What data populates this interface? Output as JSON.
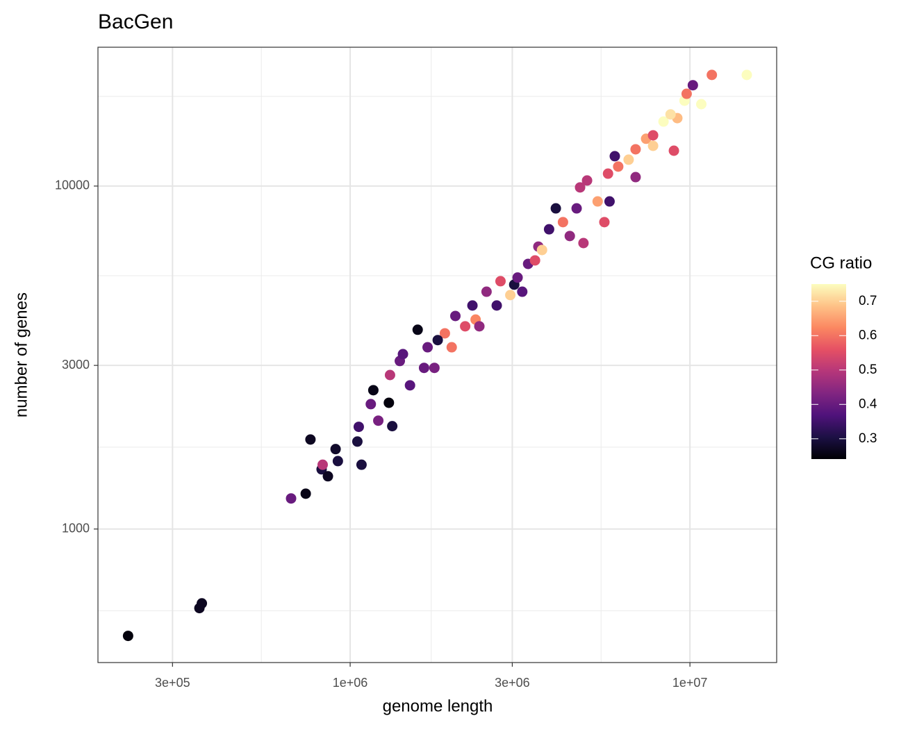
{
  "chart_data": {
    "type": "scatter",
    "title": "BacGen",
    "x_label": "genome length",
    "y_label": "number of genes",
    "x_log": true,
    "y_log": true,
    "grid": true,
    "minor_grid": true,
    "xlim": [
      181000,
      18000000
    ],
    "ylim": [
      408,
      25400
    ],
    "xticks": [
      {
        "value": 300000,
        "label": "3e+05"
      },
      {
        "value": 1000000,
        "label": "1e+06"
      },
      {
        "value": 3000000,
        "label": "3e+06"
      },
      {
        "value": 10000000,
        "label": "1e+07"
      }
    ],
    "yticks": [
      1000,
      3000,
      10000
    ],
    "color_title": "CG ratio",
    "color_lim": [
      0.241,
      0.75
    ],
    "color_ticks": [
      0.3,
      0.4,
      0.5,
      0.6,
      0.7
    ],
    "colormap": [
      "#000004",
      "#1c1044",
      "#4f127b",
      "#812581",
      "#b5367a",
      "#e55064",
      "#fb8761",
      "#fec287",
      "#fcfdbf"
    ],
    "x": [
      222000,
      360000,
      366000,
      670000,
      740000,
      764000,
      824000,
      860000,
      906000,
      920000,
      830000,
      1050000,
      1080000,
      1060000,
      1150000,
      1170000,
      1300000,
      1330000,
      1210000,
      1310000,
      1400000,
      1500000,
      1580000,
      1690000,
      1770000,
      1900000,
      2040000,
      1990000,
      2180000,
      2340000,
      2290000,
      2520000,
      2770000,
      3040000,
      3210000,
      2960000,
      3340000,
      3580000,
      3850000,
      3670000,
      4230000,
      4430000,
      4860000,
      4640000,
      4750000,
      4980000,
      5350000,
      5740000,
      5800000,
      6150000,
      6010000,
      6600000,
      6920000,
      7430000,
      7790000,
      8360000,
      8970000,
      9180000,
      8770000,
      9640000,
      9780000,
      10800000,
      10200000,
      11600000,
      14700000,
      7790000,
      5600000,
      6920000,
      4030000,
      3500000,
      3110000,
      2700000,
      2400000,
      1810000,
      1650000,
      1430000
    ],
    "y": [
      488,
      588,
      607,
      1228,
      1268,
      1824,
      1493,
      1425,
      1710,
      1578,
      1540,
      1799,
      1540,
      1986,
      2313,
      2540,
      2334,
      1995,
      2070,
      2812,
      3090,
      2624,
      3811,
      3388,
      2950,
      3720,
      4180,
      3388,
      3900,
      4080,
      4485,
      4920,
      5280,
      5160,
      4920,
      4810,
      5930,
      6660,
      7480,
      6510,
      7850,
      7150,
      6820,
      8610,
      9910,
      10380,
      9020,
      10870,
      9020,
      11400,
      12220,
      11940,
      12800,
      13740,
      14060,
      15420,
      12680,
      15780,
      16180,
      17740,
      18580,
      17330,
      19680,
      21090,
      21090,
      13100,
      7850,
      10620,
      8610,
      6070,
      5410,
      4485,
      3900,
      3555,
      2950,
      3236
    ],
    "color_values": [
      0.25,
      0.27,
      0.27,
      0.4,
      0.26,
      0.27,
      0.3,
      0.27,
      0.28,
      0.3,
      0.5,
      0.3,
      0.3,
      0.35,
      0.4,
      0.26,
      0.25,
      0.3,
      0.42,
      0.5,
      0.4,
      0.38,
      0.26,
      0.4,
      0.42,
      0.6,
      0.4,
      0.6,
      0.55,
      0.62,
      0.35,
      0.45,
      0.55,
      0.3,
      0.38,
      0.7,
      0.4,
      0.45,
      0.35,
      0.7,
      0.6,
      0.45,
      0.5,
      0.4,
      0.5,
      0.5,
      0.65,
      0.55,
      0.35,
      0.6,
      0.35,
      0.7,
      0.6,
      0.65,
      0.55,
      0.75,
      0.55,
      0.68,
      0.72,
      0.75,
      0.6,
      0.75,
      0.4,
      0.6,
      0.75,
      0.7,
      0.55,
      0.45,
      0.3,
      0.55,
      0.4,
      0.35,
      0.45,
      0.3,
      0.4,
      0.38
    ]
  }
}
